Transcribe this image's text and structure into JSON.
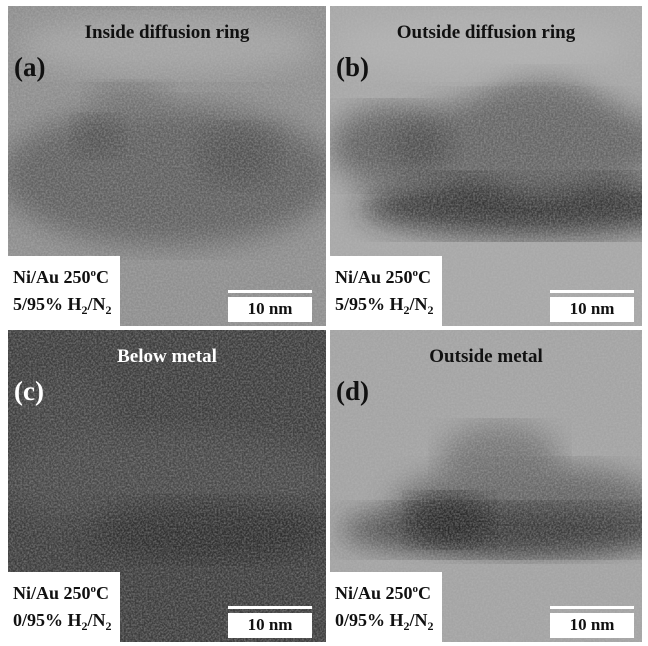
{
  "panels": [
    {
      "title": "Inside diffusion ring",
      "label": "(a)",
      "conditions": {
        "line1": [
          "Ni/Au 250",
          "o",
          "C"
        ],
        "line2": [
          "5/95% H",
          "2",
          "/N",
          "2"
        ]
      },
      "scale_bar": "10 nm"
    },
    {
      "title": "Outside diffusion ring",
      "label": "(b)",
      "conditions": {
        "line1": [
          "Ni/Au 250",
          "o",
          "C"
        ],
        "line2": [
          "5/95% H",
          "2",
          "/N",
          "2"
        ]
      },
      "scale_bar": "10 nm"
    },
    {
      "title": "Below metal",
      "label": "(c)",
      "conditions": {
        "line1": [
          "Ni/Au 250",
          "o",
          "C"
        ],
        "line2": [
          "0/95% H",
          "2",
          "/N",
          "2"
        ]
      },
      "scale_bar": "10 nm"
    },
    {
      "title": "Outside metal",
      "label": "(d)",
      "conditions": {
        "line1": [
          "Ni/Au 250",
          "o",
          "C"
        ],
        "line2": [
          "0/95% H",
          "2",
          "/N",
          "2"
        ]
      },
      "scale_bar": "10 nm"
    }
  ]
}
